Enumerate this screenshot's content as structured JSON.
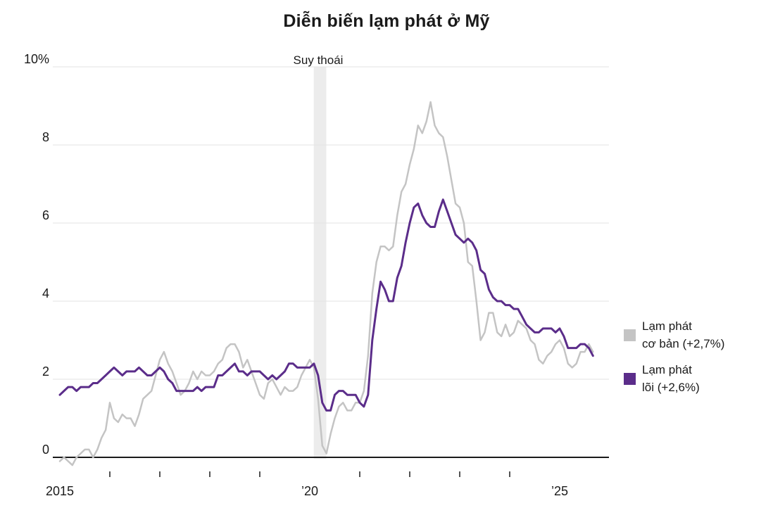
{
  "chart_data": {
    "type": "line",
    "title": "Diễn biến lạm phát ở Mỹ",
    "x_start_year": 2015,
    "x_step_months": 1,
    "y_axis": {
      "range": [
        -0.5,
        10
      ],
      "ticks": [
        {
          "value": 0,
          "label": "0"
        },
        {
          "value": 2,
          "label": "2"
        },
        {
          "value": 4,
          "label": "4"
        },
        {
          "value": 6,
          "label": "6"
        },
        {
          "value": 8,
          "label": "8"
        },
        {
          "value": 10,
          "label": "10%"
        }
      ]
    },
    "x_axis": {
      "ticks": [
        {
          "year": 2015,
          "label": "2015"
        },
        {
          "year": 2020,
          "label": "’20"
        },
        {
          "year": 2025,
          "label": "’25"
        }
      ],
      "minor_tick_years": [
        2016,
        2017,
        2018,
        2019,
        2021,
        2022,
        2023,
        2024
      ]
    },
    "recession_band": {
      "start_year": 2020.08,
      "end_year": 2020.33,
      "label": "Suy thoái"
    },
    "colors": {
      "headline": "#c4c4c4",
      "core": "#5b2d8a",
      "recession_band": "#ececec",
      "gridline": "#e3e3e3",
      "axis": "#1a1a1a",
      "text": "#1a1a1a"
    },
    "series": [
      {
        "id": "headline",
        "name": "Lạm phát cơ bản (+2,7%)",
        "color": "#c4c4c4",
        "values": [
          -0.1,
          0.0,
          -0.1,
          -0.2,
          0.0,
          0.1,
          0.2,
          0.2,
          0.0,
          0.2,
          0.5,
          0.7,
          1.4,
          1.0,
          0.9,
          1.1,
          1.0,
          1.0,
          0.8,
          1.1,
          1.5,
          1.6,
          1.7,
          2.1,
          2.5,
          2.7,
          2.4,
          2.2,
          1.9,
          1.6,
          1.7,
          1.9,
          2.2,
          2.0,
          2.2,
          2.1,
          2.1,
          2.2,
          2.4,
          2.5,
          2.8,
          2.9,
          2.9,
          2.7,
          2.3,
          2.5,
          2.2,
          1.9,
          1.6,
          1.5,
          1.9,
          2.0,
          1.8,
          1.6,
          1.8,
          1.7,
          1.7,
          1.8,
          2.1,
          2.3,
          2.5,
          2.3,
          1.5,
          0.3,
          0.1,
          0.6,
          1.0,
          1.3,
          1.4,
          1.2,
          1.2,
          1.4,
          1.4,
          1.7,
          2.6,
          4.2,
          5.0,
          5.4,
          5.4,
          5.3,
          5.4,
          6.2,
          6.8,
          7.0,
          7.5,
          7.9,
          8.5,
          8.3,
          8.6,
          9.1,
          8.5,
          8.3,
          8.2,
          7.7,
          7.1,
          6.5,
          6.4,
          6.0,
          5.0,
          4.9,
          4.0,
          3.0,
          3.2,
          3.7,
          3.7,
          3.2,
          3.1,
          3.4,
          3.1,
          3.2,
          3.5,
          3.4,
          3.3,
          3.0,
          2.9,
          2.5,
          2.4,
          2.6,
          2.7,
          2.9,
          3.0,
          2.8,
          2.4,
          2.3,
          2.4,
          2.7,
          2.7,
          2.9,
          2.7
        ]
      },
      {
        "id": "core",
        "name": "Lạm phát lõi (+2,6%)",
        "color": "#5b2d8a",
        "values": [
          1.6,
          1.7,
          1.8,
          1.8,
          1.7,
          1.8,
          1.8,
          1.8,
          1.9,
          1.9,
          2.0,
          2.1,
          2.2,
          2.3,
          2.2,
          2.1,
          2.2,
          2.2,
          2.2,
          2.3,
          2.2,
          2.1,
          2.1,
          2.2,
          2.3,
          2.2,
          2.0,
          1.9,
          1.7,
          1.7,
          1.7,
          1.7,
          1.7,
          1.8,
          1.7,
          1.8,
          1.8,
          1.8,
          2.1,
          2.1,
          2.2,
          2.3,
          2.4,
          2.2,
          2.2,
          2.1,
          2.2,
          2.2,
          2.2,
          2.1,
          2.0,
          2.1,
          2.0,
          2.1,
          2.2,
          2.4,
          2.4,
          2.3,
          2.3,
          2.3,
          2.3,
          2.4,
          2.1,
          1.4,
          1.2,
          1.2,
          1.6,
          1.7,
          1.7,
          1.6,
          1.6,
          1.6,
          1.4,
          1.3,
          1.6,
          3.0,
          3.8,
          4.5,
          4.3,
          4.0,
          4.0,
          4.6,
          4.9,
          5.5,
          6.0,
          6.4,
          6.5,
          6.2,
          6.0,
          5.9,
          5.9,
          6.3,
          6.6,
          6.3,
          6.0,
          5.7,
          5.6,
          5.5,
          5.6,
          5.5,
          5.3,
          4.8,
          4.7,
          4.3,
          4.1,
          4.0,
          4.0,
          3.9,
          3.9,
          3.8,
          3.8,
          3.6,
          3.4,
          3.3,
          3.2,
          3.2,
          3.3,
          3.3,
          3.3,
          3.2,
          3.3,
          3.1,
          2.8,
          2.8,
          2.8,
          2.9,
          2.9,
          2.8,
          2.6
        ]
      }
    ]
  },
  "legend": {
    "items": [
      {
        "line1": "Lạm phát",
        "line2": "cơ bản (+2,7%)",
        "series_id": "headline"
      },
      {
        "line1": "Lạm phát",
        "line2": "lõi (+2,6%)",
        "series_id": "core"
      }
    ]
  }
}
